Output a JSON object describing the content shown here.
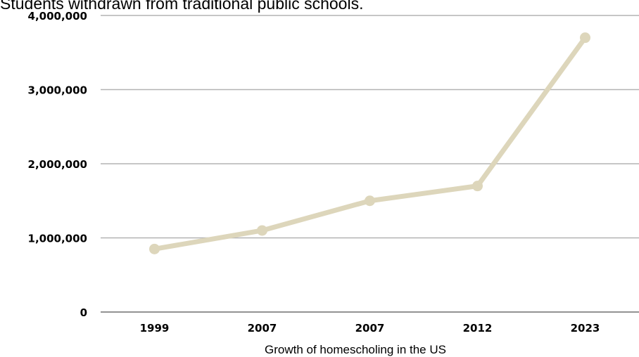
{
  "chart_data": {
    "type": "line",
    "title": "Students withdrawn from traditional public schools.",
    "xlabel": "Growth of homescholing in the US",
    "ylabel": "",
    "categories": [
      "1999",
      "2007",
      "2007",
      "2012",
      "2023"
    ],
    "series": [
      {
        "values": [
          850000,
          1100000,
          1500000,
          1700000,
          3700000
        ]
      }
    ],
    "ylim": [
      0,
      4000000
    ],
    "y_ticks": [
      "0",
      "1,000,000",
      "2,000,000",
      "3,000,000",
      "4,000,000"
    ],
    "y_tick_values": [
      0,
      1000000,
      2000000,
      3000000,
      4000000
    ],
    "grid": true,
    "legend": "none"
  },
  "colors": {
    "line": "#ddd6bb",
    "grid": "#b3b3b3",
    "axis": "#6e6e6e",
    "text": "#000000"
  }
}
